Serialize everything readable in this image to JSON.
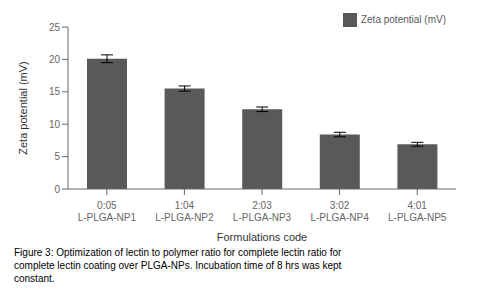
{
  "chart_data": {
    "type": "bar",
    "categories": [
      "0:05\nL-PLGA-NP1",
      "1:04\nL-PLGA-NP2",
      "2:03\nL-PLGA-NP3",
      "3:02\nL-PLGA-NP4",
      "4:01\nL-PLGA-NP5"
    ],
    "series": [
      {
        "name": "Zeta potential (mV)",
        "color": "#595959",
        "values": [
          20.1,
          15.5,
          12.3,
          8.4,
          6.9
        ],
        "errors": [
          0.6,
          0.4,
          0.35,
          0.35,
          0.3
        ]
      }
    ],
    "xlabel": "Formulations code",
    "ylabel": "Zeta potential (mV)",
    "ylim": [
      0,
      25
    ],
    "yticks": [
      0,
      5,
      10,
      15,
      20,
      25
    ],
    "legend": "upper right",
    "grid": false,
    "caption": "Figure 3: Optimization of lectin to polymer ratio for complete lectin ratio for\ncomplete lectin coating over PLGA-NPs. Incubation time of 8 hrs was kept\nconstant."
  }
}
